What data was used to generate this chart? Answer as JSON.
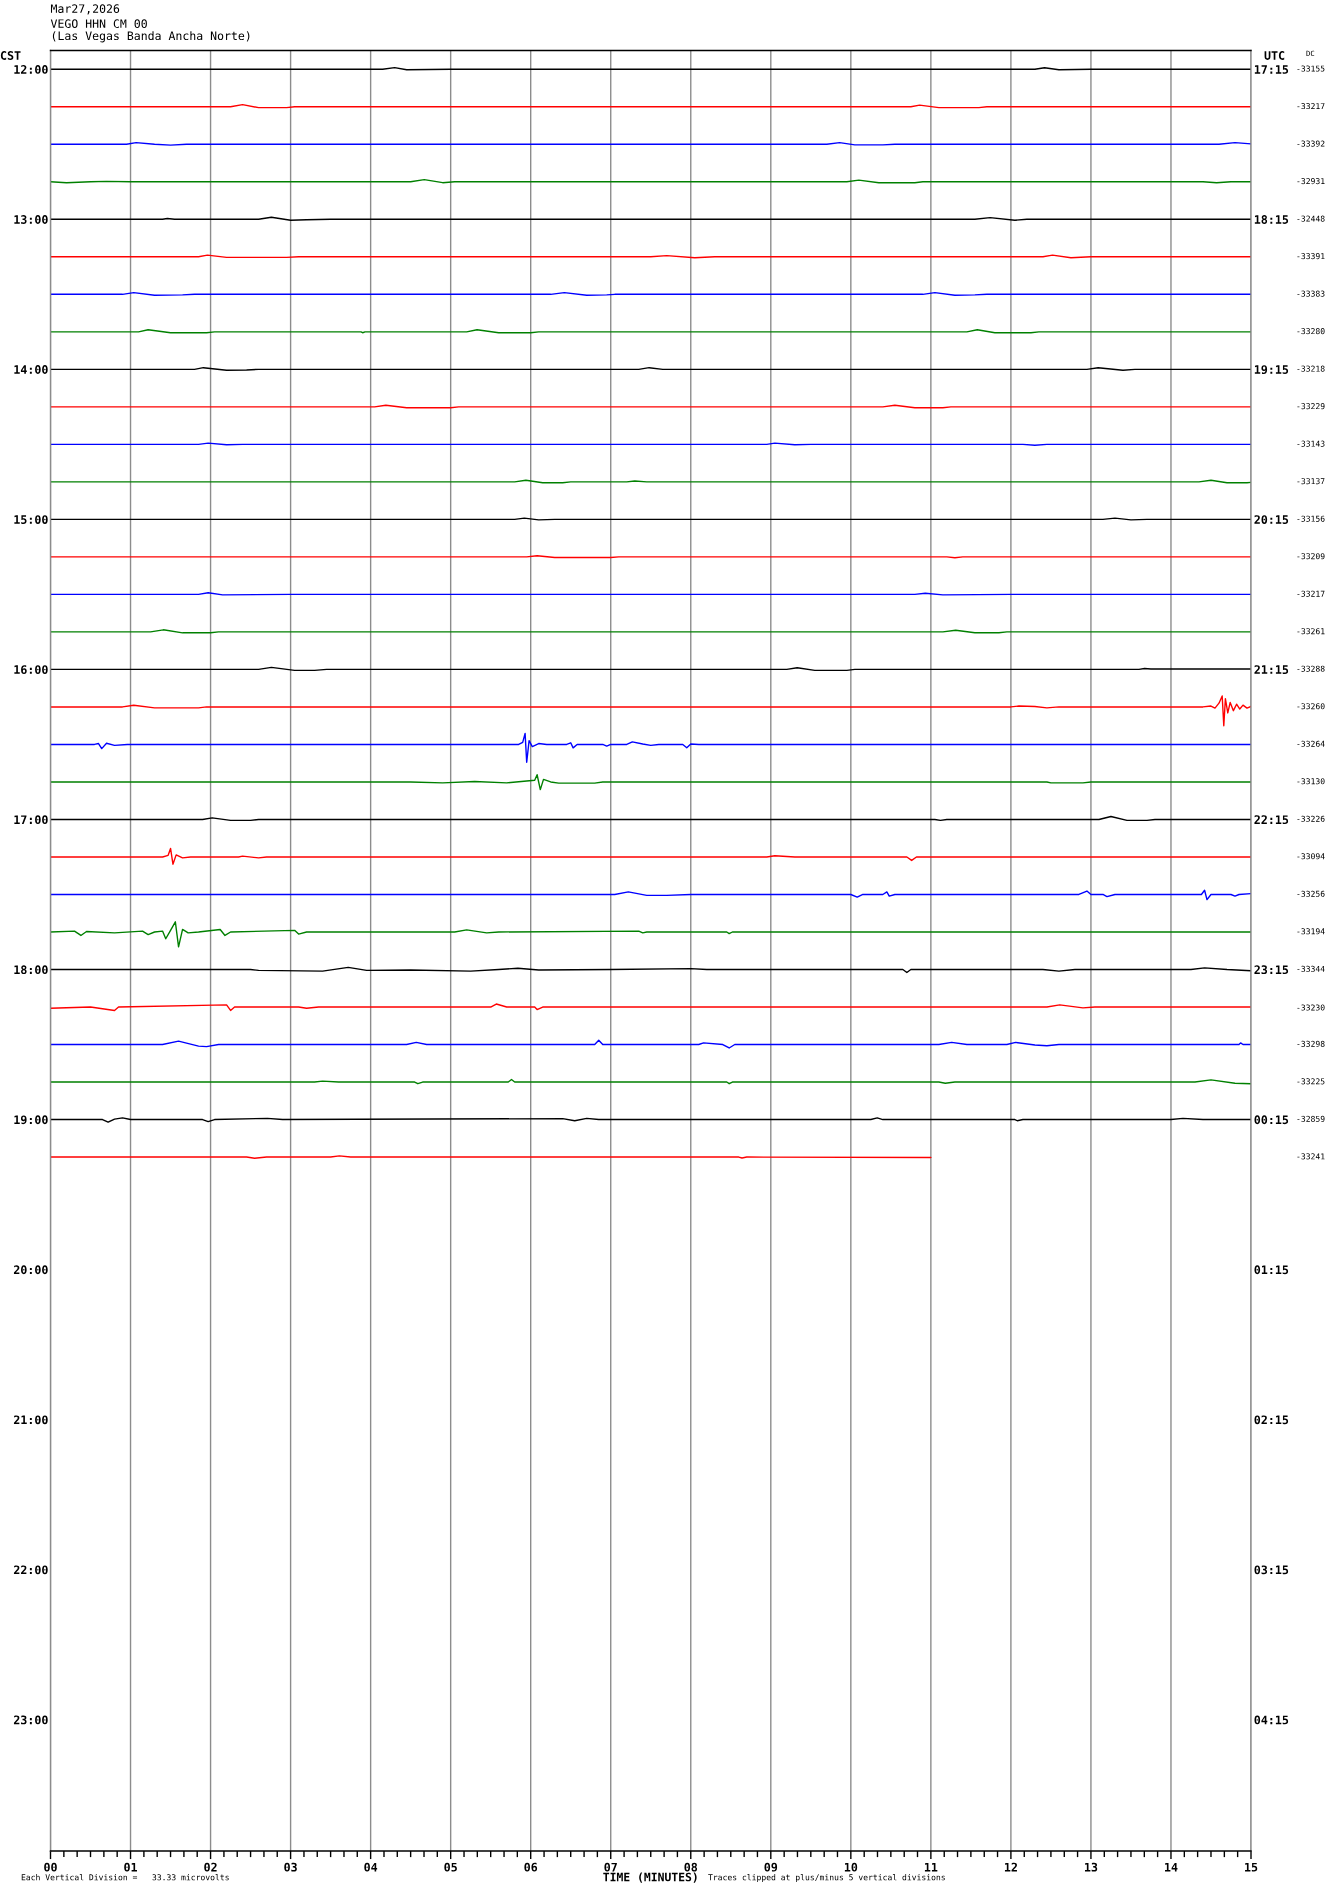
{
  "chart_data": {
    "type": "line",
    "title": "Mar27,2026",
    "subtitle": "VEGO HHN CM 00\n(Las Vegas Banda Ancha Norte)",
    "xlabel": "TIME (MINUTES)",
    "ylabel": "CST",
    "y2label": "UTC",
    "annotations": [
      "Each Vertical Division =   33.33 microvolts",
      "Traces clipped at plus/minus 5 vertical divisions",
      "DC",
      "-33155",
      "-33217",
      "-33392",
      "-32931",
      "-32448",
      "-33391",
      "-33383",
      "-33280",
      "-33218",
      "-33229",
      "-33143",
      "-33137",
      "-33156",
      "-33209",
      "-33217",
      "-33261",
      "-33288",
      "-33260",
      "-33264",
      "-33130",
      "-33226",
      "-33094",
      "-33256",
      "-33194",
      "-33344",
      "-33230",
      "-33298",
      "-33225",
      "-32859",
      "-33241"
    ],
    "xlim": [
      0,
      15
    ],
    "xticks": [
      {
        "value": 0,
        "label": "00"
      },
      {
        "value": 0.167,
        "label": null
      },
      {
        "value": 0.333,
        "label": null
      },
      {
        "value": 0.5,
        "label": null
      },
      {
        "value": 0.667,
        "label": null
      },
      {
        "value": 0.833,
        "label": null
      },
      {
        "value": 1,
        "label": "01"
      },
      {
        "value": 1.167,
        "label": null
      },
      {
        "value": 1.333,
        "label": null
      },
      {
        "value": 1.5,
        "label": null
      },
      {
        "value": 1.667,
        "label": null
      },
      {
        "value": 1.833,
        "label": null
      },
      {
        "value": 2,
        "label": "02"
      },
      {
        "value": 2.167,
        "label": null
      },
      {
        "value": 2.333,
        "label": null
      },
      {
        "value": 2.5,
        "label": null
      },
      {
        "value": 2.667,
        "label": null
      },
      {
        "value": 2.833,
        "label": null
      },
      {
        "value": 3,
        "label": "03"
      },
      {
        "value": 3.167,
        "label": null
      },
      {
        "value": 3.333,
        "label": null
      },
      {
        "value": 3.5,
        "label": null
      },
      {
        "value": 3.667,
        "label": null
      },
      {
        "value": 3.833,
        "label": null
      },
      {
        "value": 4,
        "label": "04"
      },
      {
        "value": 4.167,
        "label": null
      },
      {
        "value": 4.333,
        "label": null
      },
      {
        "value": 4.5,
        "label": null
      },
      {
        "value": 4.667,
        "label": null
      },
      {
        "value": 4.833,
        "label": null
      },
      {
        "value": 5,
        "label": "05"
      },
      {
        "value": 5.167,
        "label": null
      },
      {
        "value": 5.333,
        "label": null
      },
      {
        "value": 5.5,
        "label": null
      },
      {
        "value": 5.667,
        "label": null
      },
      {
        "value": 5.833,
        "label": null
      },
      {
        "value": 6,
        "label": "06"
      },
      {
        "value": 6.167,
        "label": null
      },
      {
        "value": 6.333,
        "label": null
      },
      {
        "value": 6.5,
        "label": null
      },
      {
        "value": 6.667,
        "label": null
      },
      {
        "value": 6.833,
        "label": null
      },
      {
        "value": 7,
        "label": "07"
      },
      {
        "value": 7.167,
        "label": null
      },
      {
        "value": 7.333,
        "label": null
      },
      {
        "value": 7.5,
        "label": null
      },
      {
        "value": 7.667,
        "label": null
      },
      {
        "value": 7.833,
        "label": null
      },
      {
        "value": 8,
        "label": "08"
      },
      {
        "value": 8.167,
        "label": null
      },
      {
        "value": 8.333,
        "label": null
      },
      {
        "value": 8.5,
        "label": null
      },
      {
        "value": 8.667,
        "label": null
      },
      {
        "value": 8.833,
        "label": null
      },
      {
        "value": 9,
        "label": "09"
      },
      {
        "value": 9.167,
        "label": null
      },
      {
        "value": 9.333,
        "label": null
      },
      {
        "value": 9.5,
        "label": null
      },
      {
        "value": 9.667,
        "label": null
      },
      {
        "value": 9.833,
        "label": null
      },
      {
        "value": 10,
        "label": "10"
      },
      {
        "value": 10.167,
        "label": null
      },
      {
        "value": 10.333,
        "label": null
      },
      {
        "value": 10.5,
        "label": null
      },
      {
        "value": 10.667,
        "label": null
      },
      {
        "value": 10.833,
        "label": null
      },
      {
        "value": 11,
        "label": "11"
      },
      {
        "value": 11.167,
        "label": null
      },
      {
        "value": 11.333,
        "label": null
      },
      {
        "value": 11.5,
        "label": null
      },
      {
        "value": 11.667,
        "label": null
      },
      {
        "value": 11.833,
        "label": null
      },
      {
        "value": 12,
        "label": "12"
      },
      {
        "value": 12.167,
        "label": null
      },
      {
        "value": 12.333,
        "label": null
      },
      {
        "value": 12.5,
        "label": null
      },
      {
        "value": 12.667,
        "label": null
      },
      {
        "value": 12.833,
        "label": null
      },
      {
        "value": 13,
        "label": "13"
      },
      {
        "value": 13.167,
        "label": null
      },
      {
        "value": 13.333,
        "label": null
      },
      {
        "value": 13.5,
        "label": null
      },
      {
        "value": 13.667,
        "label": null
      },
      {
        "value": 13.833,
        "label": null
      },
      {
        "value": 14,
        "label": "14"
      },
      {
        "value": 14.167,
        "label": null
      },
      {
        "value": 14.333,
        "label": null
      },
      {
        "value": 14.5,
        "label": null
      },
      {
        "value": 14.667,
        "label": null
      },
      {
        "value": 14.833,
        "label": null
      },
      {
        "value": 15,
        "label": "15"
      }
    ],
    "ylim": [
      23.875,
      11.875
    ],
    "yticks": [
      {
        "value": 12,
        "label": "12:00"
      },
      {
        "value": 13,
        "label": "13:00"
      },
      {
        "value": 14,
        "label": "14:00"
      },
      {
        "value": 15,
        "label": "15:00"
      },
      {
        "value": 16,
        "label": "16:00"
      },
      {
        "value": 17,
        "label": "17:00"
      },
      {
        "value": 18,
        "label": "18:00"
      },
      {
        "value": 19,
        "label": "19:00"
      },
      {
        "value": 20,
        "label": "20:00"
      },
      {
        "value": 21,
        "label": "21:00"
      },
      {
        "value": 22,
        "label": "22:00"
      },
      {
        "value": 23,
        "label": "23:00"
      }
    ],
    "y2lim": [
      "2026-03-28T05:07:30",
      "2026-03-27T17:07:30"
    ],
    "y2ticks": [
      {
        "value": "2026-03-27T17:15",
        "label": "17:15"
      },
      {
        "value": "2026-03-27T18:15",
        "label": "18:15"
      },
      {
        "value": "2026-03-27T19:15",
        "label": "19:15"
      },
      {
        "value": "2026-03-27T20:15",
        "label": "20:15"
      },
      {
        "value": "2026-03-27T21:15",
        "label": "21:15"
      },
      {
        "value": "2026-03-27T22:15",
        "label": "22:15"
      },
      {
        "value": "2026-03-27T23:15",
        "label": "23:15"
      },
      {
        "value": "2026-03-28T00:15",
        "label": "00:15"
      },
      {
        "value": "2026-03-28T01:15",
        "label": "01:15"
      },
      {
        "value": "2026-03-28T02:15",
        "label": "02:15"
      },
      {
        "value": "2026-03-28T03:15",
        "label": "03:15"
      },
      {
        "value": "2026-03-28T04:15",
        "label": "04:15"
      }
    ],
    "grid": "x",
    "marker": "none",
    "line_style": "solid",
    "series": [
      {
        "color": "#000000",
        "x": [
          0,
          4.15,
          4.3,
          4.45,
          5.0,
          12.3,
          12.42,
          12.6,
          13.0,
          15
        ],
        "values": [
          12.0,
          12.0,
          11.989,
          12.003,
          12.0,
          12.0,
          11.99,
          12.003,
          12.0,
          12.0
        ]
      },
      {
        "color": "#ff0000",
        "x": [
          0,
          2.25,
          2.4,
          2.6,
          2.95,
          3.05,
          10.75,
          10.86,
          11.1,
          11.6,
          11.7,
          15
        ],
        "values": [
          12.25,
          12.25,
          12.236,
          12.256,
          12.256,
          12.25,
          12.25,
          12.239,
          12.256,
          12.256,
          12.25,
          12.25
        ]
      },
      {
        "color": "#0000ff",
        "x": [
          0,
          0.95,
          1.07,
          1.3,
          1.5,
          1.7,
          9.7,
          9.86,
          10.05,
          10.4,
          10.55,
          14.6,
          14.8,
          15
        ],
        "values": [
          12.5,
          12.5,
          12.489,
          12.5,
          12.506,
          12.5,
          12.5,
          12.489,
          12.504,
          12.504,
          12.5,
          12.5,
          12.489,
          12.497
        ]
      },
      {
        "color": "#008000",
        "x": [
          0,
          0.2,
          0.5,
          0.7,
          1.0,
          4.5,
          4.67,
          4.9,
          5.05,
          9.95,
          10.1,
          10.35,
          10.8,
          10.9,
          14.4,
          14.57,
          14.75,
          15
        ],
        "values": [
          12.75,
          12.756,
          12.75,
          12.747,
          12.75,
          12.75,
          12.736,
          12.756,
          12.75,
          12.75,
          12.739,
          12.756,
          12.756,
          12.75,
          12.75,
          12.756,
          12.75,
          12.75
        ]
      },
      {
        "color": "#000000",
        "x": [
          0,
          1.4,
          1.46,
          1.55,
          2.6,
          2.76,
          3.0,
          3.2,
          3.5,
          11.55,
          11.74,
          12.05,
          12.2,
          15
        ],
        "values": [
          13.0,
          13.0,
          12.995,
          13.0,
          13.0,
          12.986,
          13.006,
          13.003,
          13.0,
          13.0,
          12.989,
          13.006,
          13.0,
          13.0
        ]
      },
      {
        "color": "#ff0000",
        "x": [
          0,
          1.85,
          1.96,
          2.2,
          2.95,
          3.1,
          7.5,
          7.7,
          8.05,
          8.3,
          12.4,
          12.52,
          12.75,
          13.0,
          15
        ],
        "values": [
          13.25,
          13.25,
          13.239,
          13.254,
          13.254,
          13.25,
          13.25,
          13.242,
          13.256,
          13.25,
          13.25,
          13.239,
          13.256,
          13.25,
          13.25
        ]
      },
      {
        "color": "#0000ff",
        "x": [
          0,
          0.9,
          1.04,
          1.3,
          1.65,
          1.8,
          6.25,
          6.42,
          6.7,
          6.95,
          7.05,
          10.9,
          11.05,
          11.3,
          11.55,
          11.7,
          15
        ],
        "values": [
          13.5,
          13.5,
          13.489,
          13.506,
          13.504,
          13.5,
          13.5,
          13.489,
          13.506,
          13.504,
          13.5,
          13.5,
          13.489,
          13.506,
          13.504,
          13.5,
          13.5
        ]
      },
      {
        "color": "#008000",
        "x": [
          0,
          1.1,
          1.22,
          1.5,
          1.95,
          2.05,
          3.88,
          3.9,
          3.93,
          5.2,
          5.33,
          5.6,
          6.0,
          6.1,
          11.45,
          11.58,
          11.8,
          12.25,
          12.35,
          15
        ],
        "values": [
          13.75,
          13.75,
          13.736,
          13.756,
          13.756,
          13.75,
          13.75,
          13.756,
          13.75,
          13.75,
          13.736,
          13.756,
          13.756,
          13.75,
          13.75,
          13.736,
          13.756,
          13.756,
          13.75,
          13.75
        ]
      },
      {
        "color": "#000000",
        "x": [
          0,
          1.8,
          1.91,
          2.2,
          2.45,
          2.6,
          7.35,
          7.48,
          7.65,
          12.95,
          13.09,
          13.4,
          13.55,
          15
        ],
        "values": [
          14.0,
          14.0,
          13.989,
          14.006,
          14.004,
          14.0,
          14.0,
          13.989,
          14.0,
          14.0,
          13.989,
          14.006,
          14.0,
          14.0
        ]
      },
      {
        "color": "#ff0000",
        "x": [
          0,
          4.05,
          4.19,
          4.45,
          5.0,
          5.1,
          10.4,
          10.55,
          10.8,
          11.15,
          11.25,
          15
        ],
        "values": [
          14.25,
          14.25,
          14.239,
          14.256,
          14.256,
          14.25,
          14.25,
          14.239,
          14.256,
          14.256,
          14.25,
          14.25
        ]
      },
      {
        "color": "#0000ff",
        "x": [
          0,
          1.85,
          1.97,
          2.2,
          2.4,
          8.95,
          9.05,
          9.3,
          9.5,
          12.15,
          12.3,
          12.45,
          15
        ],
        "values": [
          14.5,
          14.5,
          14.492,
          14.503,
          14.5,
          14.5,
          14.492,
          14.503,
          14.5,
          14.5,
          14.506,
          14.5,
          14.5
        ]
      },
      {
        "color": "#008000",
        "x": [
          0,
          5.8,
          5.94,
          6.15,
          6.4,
          6.5,
          7.2,
          7.3,
          7.45,
          14.35,
          14.5,
          14.7,
          14.95,
          15
        ],
        "values": [
          14.75,
          14.75,
          14.739,
          14.756,
          14.756,
          14.75,
          14.75,
          14.744,
          14.75,
          14.75,
          14.739,
          14.756,
          14.756,
          14.753
        ]
      },
      {
        "color": "#000000",
        "x": [
          0,
          5.8,
          5.92,
          6.1,
          6.3,
          13.15,
          13.3,
          13.5,
          13.7,
          15
        ],
        "values": [
          15.0,
          15.0,
          14.992,
          15.003,
          15.0,
          15.0,
          14.992,
          15.003,
          15.0,
          15.0
        ]
      },
      {
        "color": "#ff0000",
        "x": [
          0,
          5.95,
          6.08,
          6.3,
          7.0,
          7.1,
          11.2,
          11.3,
          11.4,
          15
        ],
        "values": [
          15.25,
          15.25,
          15.242,
          15.254,
          15.254,
          15.25,
          15.25,
          15.256,
          15.25,
          15.25
        ]
      },
      {
        "color": "#0000ff",
        "x": [
          0,
          1.85,
          1.97,
          2.15,
          3.0,
          10.8,
          10.93,
          11.15,
          12.0,
          15
        ],
        "values": [
          15.5,
          15.5,
          15.489,
          15.503,
          15.5,
          15.5,
          15.492,
          15.503,
          15.5,
          15.5
        ]
      },
      {
        "color": "#008000",
        "x": [
          0,
          1.25,
          1.41,
          1.65,
          2.0,
          2.1,
          11.15,
          11.31,
          11.55,
          11.85,
          11.95,
          15
        ],
        "values": [
          15.75,
          15.75,
          15.736,
          15.756,
          15.756,
          15.75,
          15.75,
          15.739,
          15.756,
          15.756,
          15.75,
          15.75
        ]
      },
      {
        "color": "#000000",
        "x": [
          0,
          2.6,
          2.76,
          3.05,
          3.3,
          3.45,
          9.2,
          9.33,
          9.55,
          9.95,
          10.05,
          13.6,
          13.67,
          13.75,
          15
        ],
        "values": [
          16.0,
          16.0,
          15.986,
          16.006,
          16.006,
          16.0,
          16.0,
          15.989,
          16.006,
          16.006,
          16.0,
          16.0,
          15.994,
          15.997,
          15.997
        ]
      },
      {
        "color": "#ff0000",
        "x": [
          0,
          0.9,
          1.04,
          1.3,
          1.85,
          1.95,
          12.0,
          12.1,
          12.3,
          12.45,
          12.6,
          14.4,
          14.5,
          14.55,
          14.6,
          14.64,
          14.66,
          14.68,
          14.71,
          14.74,
          14.78,
          14.82,
          14.86,
          14.9,
          14.95,
          15
        ],
        "values": [
          16.25,
          16.25,
          16.239,
          16.256,
          16.256,
          16.25,
          16.25,
          16.244,
          16.247,
          16.256,
          16.25,
          16.25,
          16.244,
          16.258,
          16.225,
          16.177,
          16.375,
          16.195,
          16.29,
          16.22,
          16.275,
          16.232,
          16.264,
          16.238,
          16.258,
          16.247
        ]
      },
      {
        "color": "#0000ff",
        "x": [
          0,
          0.55,
          0.6,
          0.64,
          0.7,
          0.8,
          0.96,
          5.85,
          5.9,
          5.93,
          5.95,
          5.98,
          6.02,
          6.1,
          6.2,
          6.45,
          6.5,
          6.53,
          6.58,
          6.9,
          6.95,
          7.0,
          7.2,
          7.27,
          7.4,
          7.5,
          7.6,
          7.9,
          7.95,
          8.0,
          8.1,
          15
        ],
        "values": [
          16.5,
          16.5,
          16.494,
          16.528,
          16.492,
          16.506,
          16.5,
          16.5,
          16.486,
          16.426,
          16.619,
          16.475,
          16.514,
          16.494,
          16.5,
          16.5,
          16.489,
          16.523,
          16.5,
          16.5,
          16.511,
          16.5,
          16.5,
          16.483,
          16.497,
          16.506,
          16.5,
          16.5,
          16.522,
          16.497,
          16.5,
          16.5
        ]
      },
      {
        "color": "#008000",
        "x": [
          0,
          4.5,
          4.9,
          5.3,
          5.7,
          5.95,
          6.05,
          6.08,
          6.12,
          6.16,
          6.25,
          6.35,
          6.8,
          6.9,
          12.45,
          12.5,
          12.9,
          13.0,
          15
        ],
        "values": [
          16.75,
          16.75,
          16.756,
          16.747,
          16.756,
          16.744,
          16.739,
          16.702,
          16.801,
          16.733,
          16.75,
          16.758,
          16.758,
          16.75,
          16.75,
          16.756,
          16.756,
          16.75,
          16.75
        ]
      },
      {
        "color": "#000000",
        "x": [
          0,
          1.9,
          2.02,
          2.25,
          2.5,
          2.6,
          11.05,
          11.12,
          11.2,
          13.1,
          13.25,
          13.45,
          13.7,
          13.8,
          15
        ],
        "values": [
          17.0,
          17.0,
          16.989,
          17.006,
          17.006,
          17.0,
          17.0,
          17.006,
          17.0,
          17.0,
          16.98,
          17.006,
          17.006,
          17.0,
          17.0
        ]
      },
      {
        "color": "#ff0000",
        "x": [
          0,
          1.4,
          1.47,
          1.5,
          1.53,
          1.57,
          1.65,
          1.75,
          2.35,
          2.4,
          2.6,
          2.7,
          8.95,
          9.05,
          9.3,
          10.7,
          10.76,
          10.82,
          15
        ],
        "values": [
          17.25,
          17.25,
          17.239,
          17.193,
          17.298,
          17.236,
          17.256,
          17.25,
          17.25,
          17.244,
          17.256,
          17.25,
          17.25,
          17.242,
          17.25,
          17.25,
          17.273,
          17.25,
          17.25
        ]
      },
      {
        "color": "#0000ff",
        "x": [
          0,
          7.05,
          7.22,
          7.45,
          7.7,
          8.0,
          10.0,
          10.08,
          10.15,
          10.4,
          10.45,
          10.48,
          10.55,
          12.85,
          12.95,
          13.0,
          13.15,
          13.2,
          13.3,
          14.38,
          14.42,
          14.45,
          14.5,
          14.75,
          14.8,
          14.85,
          15
        ],
        "values": [
          17.5,
          17.5,
          17.483,
          17.506,
          17.506,
          17.5,
          17.5,
          17.517,
          17.5,
          17.5,
          17.483,
          17.511,
          17.5,
          17.5,
          17.477,
          17.5,
          17.5,
          17.514,
          17.5,
          17.5,
          17.472,
          17.534,
          17.5,
          17.5,
          17.511,
          17.5,
          17.494
        ]
      },
      {
        "color": "#008000",
        "x": [
          0,
          0.3,
          0.38,
          0.45,
          0.8,
          1.15,
          1.22,
          1.3,
          1.4,
          1.44,
          1.5,
          1.56,
          1.6,
          1.65,
          1.72,
          1.85,
          2.12,
          2.18,
          2.25,
          3.05,
          3.1,
          3.2,
          5.05,
          5.2,
          5.45,
          5.6,
          7.35,
          7.4,
          7.45,
          8.45,
          8.48,
          8.52,
          15
        ],
        "values": [
          17.75,
          17.744,
          17.773,
          17.747,
          17.756,
          17.744,
          17.767,
          17.75,
          17.744,
          17.795,
          17.739,
          17.682,
          17.849,
          17.733,
          17.756,
          17.75,
          17.733,
          17.773,
          17.75,
          17.739,
          17.764,
          17.75,
          17.75,
          17.736,
          17.756,
          17.75,
          17.744,
          17.756,
          17.75,
          17.75,
          17.761,
          17.75,
          17.75
        ]
      },
      {
        "color": "#000000",
        "x": [
          0,
          2.5,
          2.6,
          3.4,
          3.72,
          3.95,
          4.5,
          5.25,
          5.6,
          5.84,
          6.1,
          7.0,
          8.0,
          8.2,
          10.65,
          10.7,
          10.75,
          12.4,
          12.6,
          12.8,
          14.25,
          14.42,
          14.7,
          15
        ],
        "values": [
          18.0,
          18.0,
          18.006,
          18.011,
          17.986,
          18.006,
          18.003,
          18.011,
          18.0,
          17.992,
          18.003,
          18.0,
          17.994,
          18.0,
          18.0,
          18.02,
          18.0,
          18.0,
          18.011,
          18.0,
          18.0,
          17.989,
          18.0,
          18.008
        ]
      },
      {
        "color": "#ff0000",
        "x": [
          0,
          0.5,
          0.8,
          0.85,
          2.2,
          2.25,
          2.3,
          3.1,
          3.2,
          3.35,
          5.5,
          5.57,
          5.7,
          6.05,
          6.08,
          6.15,
          12.45,
          12.61,
          12.9,
          13.05,
          15
        ],
        "values": [
          18.258,
          18.25,
          18.273,
          18.25,
          18.236,
          18.273,
          18.25,
          18.25,
          18.258,
          18.25,
          18.25,
          18.23,
          18.25,
          18.25,
          18.267,
          18.25,
          18.25,
          18.236,
          18.256,
          18.25,
          18.25
        ]
      },
      {
        "color": "#0000ff",
        "x": [
          0,
          1.4,
          1.6,
          1.85,
          1.95,
          2.1,
          4.45,
          4.57,
          4.7,
          6.8,
          6.85,
          6.9,
          8.1,
          8.16,
          8.4,
          8.48,
          8.55,
          11.1,
          11.26,
          11.45,
          11.95,
          12.06,
          12.3,
          12.45,
          12.6,
          14.85,
          14.87,
          14.9,
          15
        ],
        "values": [
          18.5,
          18.5,
          18.477,
          18.511,
          18.514,
          18.5,
          18.5,
          18.486,
          18.5,
          18.5,
          18.472,
          18.5,
          18.5,
          18.489,
          18.5,
          18.523,
          18.5,
          18.5,
          18.486,
          18.5,
          18.5,
          18.486,
          18.503,
          18.508,
          18.5,
          18.5,
          18.489,
          18.5,
          18.5
        ]
      },
      {
        "color": "#008000",
        "x": [
          0,
          3.3,
          3.4,
          3.6,
          4.55,
          4.59,
          4.65,
          5.72,
          5.76,
          5.8,
          8.45,
          8.48,
          8.52,
          11.1,
          11.18,
          11.3,
          14.3,
          14.5,
          14.8,
          15
        ],
        "values": [
          18.75,
          18.75,
          18.744,
          18.75,
          18.75,
          18.761,
          18.75,
          18.75,
          18.733,
          18.75,
          18.75,
          18.761,
          18.75,
          18.75,
          18.758,
          18.75,
          18.75,
          18.736,
          18.758,
          18.761
        ]
      },
      {
        "color": "#000000",
        "x": [
          0,
          0.65,
          0.72,
          0.8,
          0.9,
          1.0,
          1.9,
          1.97,
          2.05,
          2.71,
          2.9,
          6.4,
          6.55,
          6.7,
          6.85,
          10.25,
          10.33,
          10.4,
          12.05,
          12.08,
          12.15,
          14.0,
          14.15,
          14.4,
          15
        ],
        "values": [
          19.0,
          19.0,
          19.017,
          18.997,
          18.989,
          19.0,
          19.0,
          19.014,
          19.0,
          18.992,
          19.0,
          18.994,
          19.008,
          18.992,
          19.0,
          19.0,
          18.989,
          19.0,
          19.0,
          19.008,
          19.0,
          19.0,
          18.992,
          19.0,
          19.0
        ]
      },
      {
        "color": "#ff0000",
        "x": [
          0,
          2.45,
          2.55,
          2.7,
          3.5,
          3.61,
          3.75,
          8.6,
          8.64,
          8.7,
          11
        ],
        "values": [
          19.25,
          19.25,
          19.258,
          19.25,
          19.25,
          19.242,
          19.25,
          19.25,
          19.256,
          19.25,
          19.253
        ]
      }
    ]
  }
}
